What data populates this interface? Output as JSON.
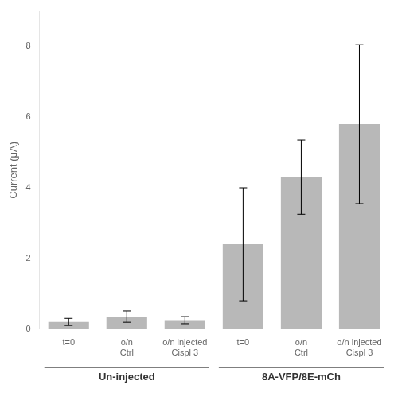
{
  "chart_data": {
    "type": "bar",
    "ylabel": "Current (μA)",
    "categories": [
      "t=0",
      "o/n\nCtrl",
      "o/n injected\nCispl 3",
      "t=0",
      "o/n\nCtrl",
      "o/n injected\nCispl 3"
    ],
    "values": [
      0.2,
      0.35,
      0.25,
      2.4,
      4.3,
      5.8
    ],
    "errors": [
      0.1,
      0.16,
      0.1,
      1.6,
      1.05,
      2.25
    ],
    "groups": [
      {
        "name": "Un-injected",
        "categories": [
          "t=0",
          "o/n\nCtrl",
          "o/n injected\nCispl 3"
        ]
      },
      {
        "name": "8A-VFP/8E-mCh",
        "categories": [
          "t=0",
          "o/n\nCtrl",
          "o/n injected\nCispl 3"
        ]
      }
    ],
    "color": "#b8b8b8",
    "ylim": [
      0,
      9
    ],
    "yticks": [
      0,
      2,
      4,
      6,
      8
    ],
    "grid": false
  }
}
